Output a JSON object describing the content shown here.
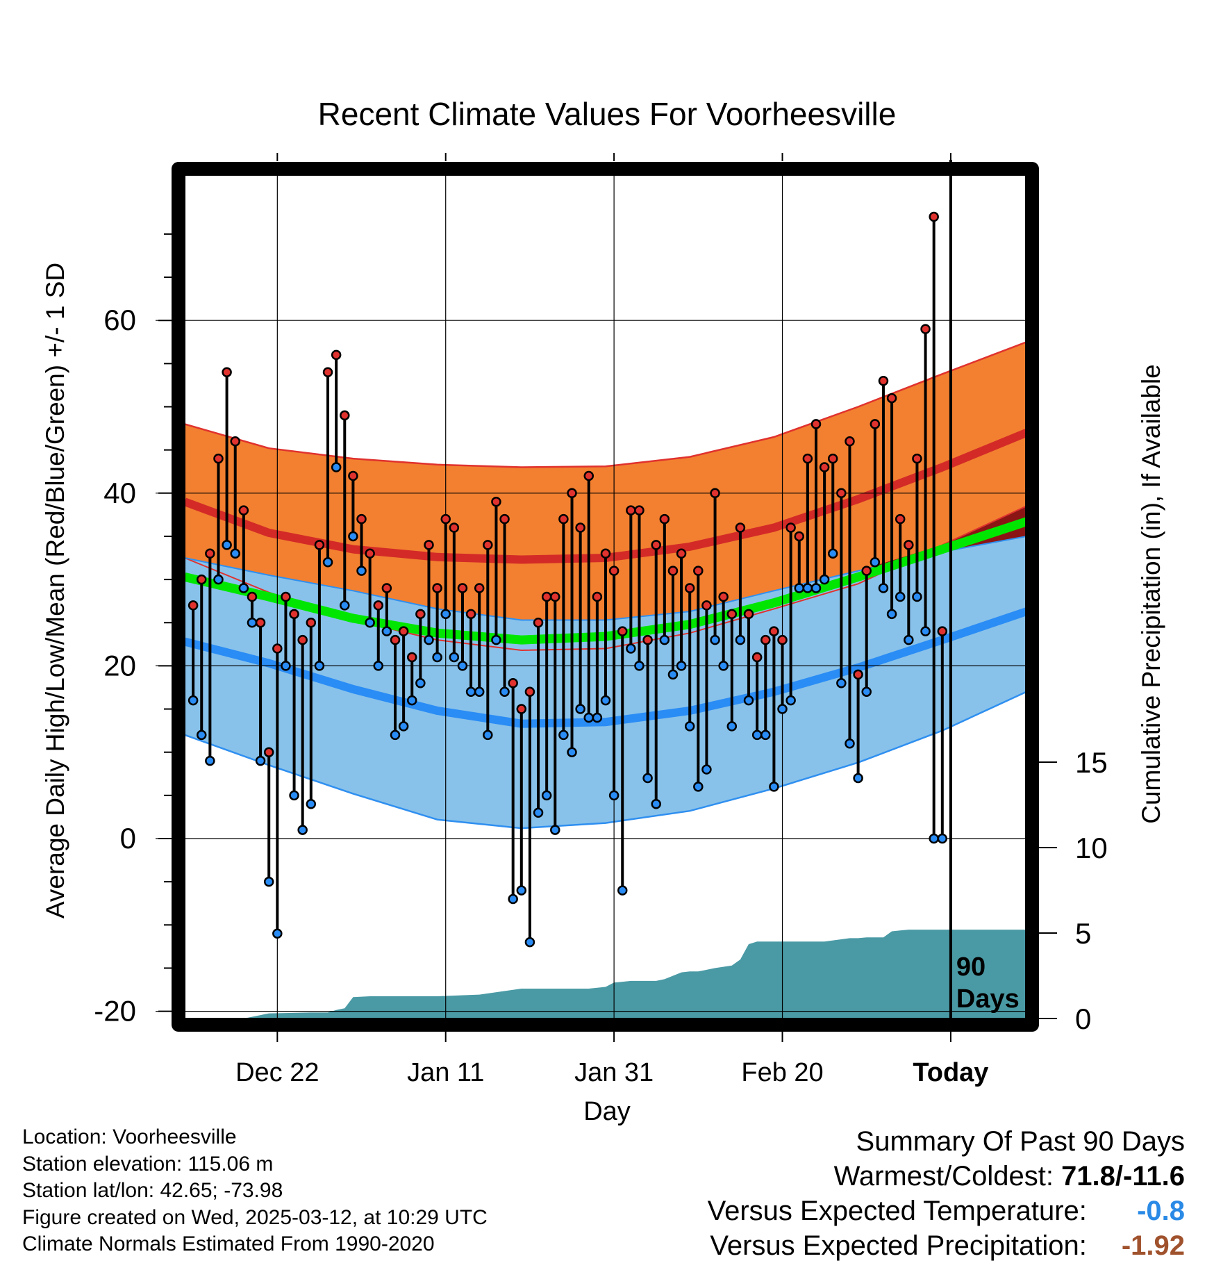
{
  "chart_data": {
    "type": "line",
    "title": "Recent Climate Values For Voorheesville",
    "xlabel": "Day",
    "ylabel_left": "Average Daily High/Low/Mean (Red/Blue/Green) +/- 1 SD",
    "ylabel_right": "Cumulative Precipitation (in), If Available",
    "x_ticks": [
      {
        "day": 11,
        "label": "Dec 22"
      },
      {
        "day": 31,
        "label": "Jan 11"
      },
      {
        "day": 51,
        "label": "Jan 31"
      },
      {
        "day": 71,
        "label": "Feb 20"
      },
      {
        "day": 91,
        "label": "Today"
      }
    ],
    "xlim": [
      0,
      100
    ],
    "today_day": 91,
    "today_label": "90 Days",
    "ylim_left": [
      -21,
      77
    ],
    "yticks_left": [
      -20,
      0,
      20,
      40,
      60
    ],
    "yticks_right": [
      0,
      5,
      10,
      15
    ],
    "ylim_right": [
      0,
      15
    ],
    "grid": true,
    "normals": {
      "days": [
        0,
        10,
        20,
        30,
        40,
        50,
        60,
        70,
        80,
        90,
        100
      ],
      "high_upper": [
        48.0,
        45.2,
        44.0,
        43.3,
        43.0,
        43.1,
        44.2,
        46.5,
        50.0,
        53.8,
        57.5
      ],
      "high_mean": [
        39.0,
        35.4,
        33.5,
        32.6,
        32.3,
        32.5,
        33.8,
        36.0,
        39.3,
        43.0,
        47.0
      ],
      "high_lower": [
        32.5,
        28.5,
        25.3,
        23.0,
        21.8,
        22.0,
        23.8,
        26.6,
        29.5,
        34.0,
        38.5
      ],
      "mean": [
        30.3,
        28.0,
        25.5,
        23.8,
        23.0,
        23.4,
        24.8,
        27.3,
        30.3,
        33.5,
        36.7
      ],
      "low_upper": [
        32.5,
        30.5,
        28.7,
        26.6,
        25.3,
        25.3,
        26.3,
        28.7,
        31.0,
        33.2,
        35.0
      ],
      "low_mean": [
        22.8,
        20.3,
        17.3,
        14.8,
        13.3,
        13.5,
        14.8,
        17.0,
        19.8,
        23.0,
        26.3
      ],
      "low_lower": [
        12.0,
        8.5,
        5.2,
        2.2,
        1.2,
        1.8,
        3.2,
        5.8,
        8.8,
        12.5,
        17.0
      ]
    },
    "daily": {
      "day": [
        1,
        2,
        3,
        4,
        5,
        6,
        7,
        8,
        9,
        10,
        11,
        12,
        13,
        14,
        15,
        16,
        17,
        18,
        19,
        20,
        21,
        22,
        23,
        24,
        25,
        26,
        27,
        28,
        29,
        30,
        31,
        32,
        33,
        34,
        35,
        36,
        37,
        38,
        39,
        40,
        41,
        42,
        43,
        44,
        45,
        46,
        47,
        48,
        49,
        50,
        51,
        52,
        53,
        54,
        55,
        56,
        57,
        58,
        59,
        60,
        61,
        62,
        63,
        64,
        65,
        66,
        67,
        68,
        69,
        70,
        71,
        72,
        73,
        74,
        75,
        76,
        77,
        78,
        79,
        80,
        81,
        82,
        83,
        84,
        85,
        86,
        87,
        88,
        89,
        90
      ],
      "high": [
        27,
        30,
        33,
        44,
        54,
        46,
        38,
        28,
        25,
        10,
        22,
        28,
        26,
        23,
        25,
        34,
        54,
        56,
        49,
        42,
        37,
        33,
        27,
        29,
        23,
        24,
        21,
        26,
        34,
        29,
        37,
        36,
        29,
        26,
        29,
        34,
        39,
        37,
        18,
        15,
        17,
        25,
        28,
        28,
        37,
        40,
        36,
        42,
        28,
        33,
        31,
        24,
        38,
        38,
        23,
        34,
        37,
        31,
        33,
        29,
        31,
        27,
        40,
        28,
        26,
        36,
        26,
        21,
        23,
        24,
        23,
        36,
        35,
        44,
        48,
        43,
        44,
        40,
        46,
        19,
        31,
        48,
        53,
        51,
        37,
        34,
        44,
        59,
        72,
        24
      ],
      "low": [
        16,
        12,
        9,
        30,
        34,
        33,
        29,
        25,
        9,
        -5,
        -11,
        20,
        5,
        1,
        4,
        20,
        32,
        43,
        27,
        35,
        31,
        25,
        20,
        24,
        12,
        13,
        16,
        18,
        23,
        21,
        26,
        21,
        20,
        17,
        17,
        12,
        23,
        17,
        -7,
        -6,
        -12,
        3,
        5,
        1,
        12,
        10,
        15,
        14,
        14,
        16,
        5,
        -6,
        22,
        20,
        7,
        4,
        23,
        19,
        20,
        13,
        6,
        8,
        23,
        20,
        13,
        23,
        16,
        12,
        12,
        6,
        15,
        16,
        29,
        29,
        29,
        30,
        33,
        18,
        11,
        7,
        17,
        32,
        29,
        26,
        28,
        23,
        28,
        24,
        0,
        0
      ]
    },
    "precip_cumulative": {
      "day": [
        0,
        7,
        9,
        10,
        15,
        17,
        18,
        19,
        20,
        22,
        25,
        30,
        35,
        40,
        45,
        48,
        50,
        51,
        52,
        53,
        56,
        57,
        58,
        59,
        60,
        61,
        62,
        63,
        65,
        66,
        67,
        68,
        75,
        76,
        79,
        80,
        81,
        82,
        83,
        84,
        85,
        86,
        100
      ],
      "value": [
        0,
        0,
        0.2,
        0.3,
        0.35,
        0.35,
        0.5,
        0.6,
        1.25,
        1.3,
        1.3,
        1.3,
        1.4,
        1.75,
        1.75,
        1.75,
        1.85,
        2.1,
        2.15,
        2.2,
        2.2,
        2.3,
        2.5,
        2.7,
        2.75,
        2.75,
        2.85,
        2.95,
        3.1,
        3.45,
        4.35,
        4.5,
        4.5,
        4.5,
        4.7,
        4.7,
        4.75,
        4.75,
        4.75,
        5.1,
        5.15,
        5.2,
        5.2
      ]
    },
    "colors": {
      "high_band": "#f28030",
      "high_edge": "#e0322e",
      "high_mean": "#d32a27",
      "mean": "#00e600",
      "low_band": "#88c2ea",
      "low_edge": "#2f8ff0",
      "low_mean": "#2a8cf5",
      "overlap": "#8b1515",
      "precip": "#4a9aa5",
      "high_dot": "#e0322e",
      "low_dot": "#2a8cf5"
    }
  },
  "station_info": {
    "location": "Location: Voorheesville",
    "elevation": "Station elevation: 115.06 m",
    "latlon": "Station lat/lon: 42.65; -73.98",
    "created": "Figure created on Wed, 2025-03-12, at 10:29 UTC",
    "normals": "Climate Normals Estimated From 1990-2020"
  },
  "summary": {
    "title": "Summary Of Past 90 Days",
    "warm_cold_label": "Warmest/Coldest:",
    "warm_cold_value": "71.8/-11.6",
    "temp_label": "Versus Expected Temperature:",
    "temp_value": "-0.8",
    "temp_color": "#2a8ae6",
    "precip_label": "Versus Expected Precipitation:",
    "precip_value": "-1.92",
    "precip_color": "#a0522d"
  }
}
